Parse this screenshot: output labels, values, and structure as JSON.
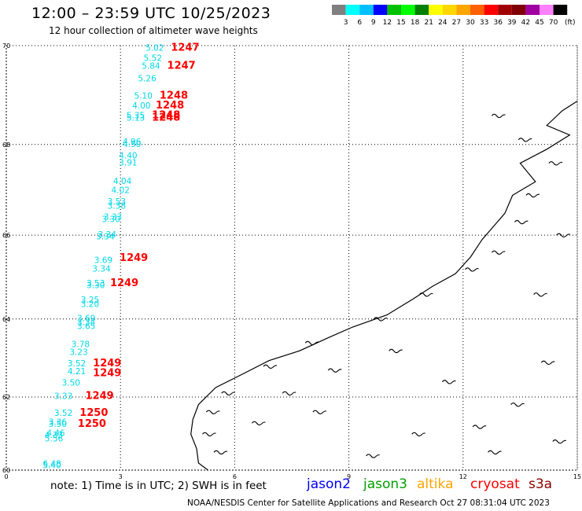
{
  "header": {
    "title": "12:00 – 23:59 UTC 10/25/2023",
    "subtitle": "12 hour collection of altimeter wave heights"
  },
  "colorbar": {
    "labels": [
      "3",
      "6",
      "9",
      "12",
      "15",
      "18",
      "21",
      "24",
      "27",
      "30",
      "33",
      "36",
      "39",
      "42",
      "45",
      "70"
    ],
    "unit": "(ft)",
    "colors": [
      "#808080",
      "#00ffff",
      "#00bfff",
      "#0000ff",
      "#00c000",
      "#00ff00",
      "#008000",
      "#ffff00",
      "#ffd700",
      "#ffa500",
      "#ff6000",
      "#ff0000",
      "#a00000",
      "#800000",
      "#a000a0",
      "#ff80ff",
      "#000000"
    ]
  },
  "axes": {
    "lat_ticks": [
      "70",
      "68",
      "66",
      "64",
      "62",
      "60"
    ],
    "lon_ticks": [
      "0",
      "3",
      "6",
      "9",
      "12",
      "15"
    ],
    "lat_range": [
      60,
      70
    ],
    "lon_range": [
      0,
      15
    ]
  },
  "swh_labels": [
    {
      "text": "5.02",
      "lon": 3.9,
      "lat": 69.9
    },
    {
      "text": "5.52",
      "lon": 3.85,
      "lat": 69.7
    },
    {
      "text": "5.84",
      "lon": 3.8,
      "lat": 69.55
    },
    {
      "text": "5.26",
      "lon": 3.7,
      "lat": 69.3
    },
    {
      "text": "5.10",
      "lon": 3.6,
      "lat": 68.95
    },
    {
      "text": "4.00",
      "lon": 3.55,
      "lat": 68.75
    },
    {
      "text": "5.35",
      "lon": 3.4,
      "lat": 68.55
    },
    {
      "text": "5.13",
      "lon": 3.4,
      "lat": 68.5
    },
    {
      "text": "4.96",
      "lon": 3.3,
      "lat": 68.0
    },
    {
      "text": "4.50",
      "lon": 3.3,
      "lat": 67.95
    },
    {
      "text": "4.40",
      "lon": 3.2,
      "lat": 67.7
    },
    {
      "text": "3.91",
      "lon": 3.2,
      "lat": 67.55
    },
    {
      "text": "4.04",
      "lon": 3.05,
      "lat": 67.15
    },
    {
      "text": "4.02",
      "lon": 3.0,
      "lat": 66.95
    },
    {
      "text": "3.53",
      "lon": 2.9,
      "lat": 66.7
    },
    {
      "text": "3.38",
      "lon": 2.9,
      "lat": 66.6
    },
    {
      "text": "3.33",
      "lon": 2.8,
      "lat": 66.35
    },
    {
      "text": "3.30",
      "lon": 2.75,
      "lat": 66.3
    },
    {
      "text": "3.34",
      "lon": 2.65,
      "lat": 65.95
    },
    {
      "text": "3.34",
      "lon": 2.6,
      "lat": 65.9
    },
    {
      "text": "3.69",
      "lon": 2.55,
      "lat": 65.35
    },
    {
      "text": "3.34",
      "lon": 2.5,
      "lat": 65.15
    },
    {
      "text": "3.53",
      "lon": 2.35,
      "lat": 64.8
    },
    {
      "text": "3.30",
      "lon": 2.35,
      "lat": 64.75
    },
    {
      "text": "3.25",
      "lon": 2.2,
      "lat": 64.4
    },
    {
      "text": "3.20",
      "lon": 2.2,
      "lat": 64.3
    },
    {
      "text": "3.69",
      "lon": 2.1,
      "lat": 63.95
    },
    {
      "text": "3.34",
      "lon": 2.1,
      "lat": 63.85
    },
    {
      "text": "3.65",
      "lon": 2.1,
      "lat": 63.75
    },
    {
      "text": "3.78",
      "lon": 1.95,
      "lat": 63.3
    },
    {
      "text": "3.23",
      "lon": 1.9,
      "lat": 63.1
    },
    {
      "text": "3.52",
      "lon": 1.85,
      "lat": 62.8
    },
    {
      "text": "4.21",
      "lon": 1.85,
      "lat": 62.6
    },
    {
      "text": "3.50",
      "lon": 1.7,
      "lat": 62.3
    },
    {
      "text": "3.33",
      "lon": 1.5,
      "lat": 61.95
    },
    {
      "text": "3.52",
      "lon": 1.5,
      "lat": 61.5
    },
    {
      "text": "3.36",
      "lon": 1.35,
      "lat": 61.25
    },
    {
      "text": "3.50",
      "lon": 1.35,
      "lat": 61.2
    },
    {
      "text": "4.46",
      "lon": 1.3,
      "lat": 60.95
    },
    {
      "text": "4.33",
      "lon": 1.25,
      "lat": 60.9
    },
    {
      "text": "5.56",
      "lon": 1.25,
      "lat": 60.8
    },
    {
      "text": "6.48",
      "lon": 1.2,
      "lat": 60.1
    },
    {
      "text": "5.40",
      "lon": 1.2,
      "lat": 60.05
    }
  ],
  "pass_labels": [
    {
      "text": "1247",
      "lon": 4.7,
      "lat": 69.9
    },
    {
      "text": "1247",
      "lon": 4.6,
      "lat": 69.55
    },
    {
      "text": "1248",
      "lon": 4.4,
      "lat": 68.95
    },
    {
      "text": "1248",
      "lon": 4.3,
      "lat": 68.75
    },
    {
      "text": "1248",
      "lon": 4.2,
      "lat": 68.55
    },
    {
      "text": "1248",
      "lon": 4.2,
      "lat": 68.5
    },
    {
      "text": "1249",
      "lon": 3.35,
      "lat": 65.4
    },
    {
      "text": "1249",
      "lon": 3.1,
      "lat": 64.8
    },
    {
      "text": "1249",
      "lon": 2.65,
      "lat": 62.8
    },
    {
      "text": "1249",
      "lon": 2.65,
      "lat": 62.55
    },
    {
      "text": "1249",
      "lon": 2.45,
      "lat": 61.95
    },
    {
      "text": "1250",
      "lon": 2.3,
      "lat": 61.5
    },
    {
      "text": "1250",
      "lon": 2.25,
      "lat": 61.2
    }
  ],
  "note": {
    "text": "note:  1) Time is in UTC;  2) SWH is in feet"
  },
  "satellites": [
    {
      "name": "jason2",
      "color": "#0000ff"
    },
    {
      "name": "jason3",
      "color": "#00a000"
    },
    {
      "name": "altika",
      "color": "#ffa500"
    },
    {
      "name": "cryosat",
      "color": "#ff0000"
    },
    {
      "name": "s3a",
      "color": "#8b0000"
    }
  ],
  "footer": {
    "text": "NOAA/NESDIS Center for Satellite Applications and Research    Oct 27 08:31:04 UTC 2023"
  },
  "colors": {
    "swh": "#00d8e8",
    "pass": "#ff0000",
    "coast": "#000000"
  }
}
